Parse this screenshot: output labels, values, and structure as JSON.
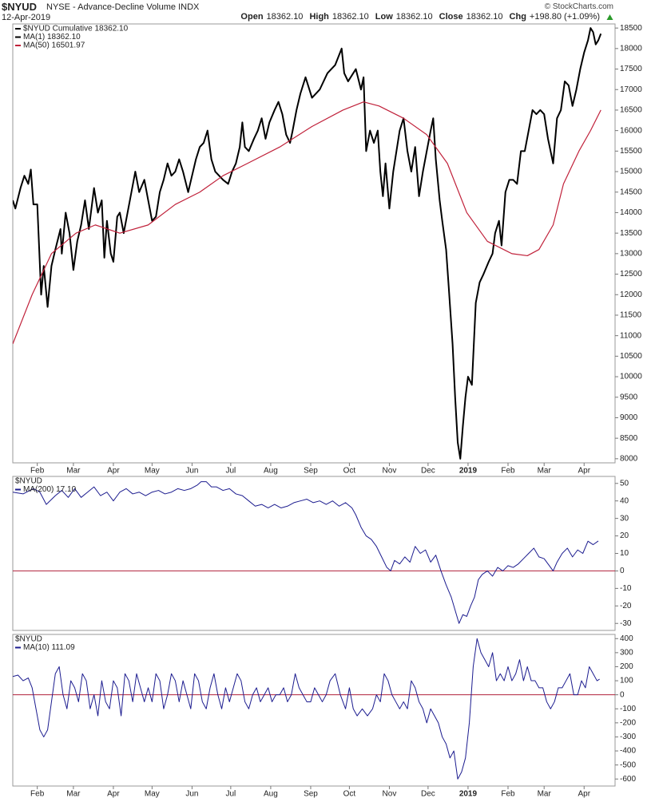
{
  "header": {
    "symbol": "$NYUD",
    "description": "NYSE - Advance-Decline Volume INDX",
    "date": "12-Apr-2019",
    "credit": "© StockCharts.com",
    "quote": [
      {
        "label": "Open",
        "value": "18362.10"
      },
      {
        "label": "High",
        "value": "18362.10"
      },
      {
        "label": "Low",
        "value": "18362.10"
      },
      {
        "label": "Close",
        "value": "18362.10"
      },
      {
        "label": "Chg",
        "value": "+198.80 (+1.09%)"
      }
    ]
  },
  "chart_data": [
    {
      "type": "line",
      "subtitle": "$NYUD Cumulative 18362.10",
      "subtitle_color": "#000000",
      "xlim": [
        12,
        479
      ],
      "ylim": [
        7900,
        18600
      ],
      "yticks": [
        8000,
        8500,
        9000,
        9500,
        10000,
        10500,
        11000,
        11500,
        12000,
        12500,
        13000,
        13500,
        14000,
        14500,
        15000,
        15500,
        16000,
        16500,
        17000,
        17500,
        18000,
        18500
      ],
      "xticks": [
        {
          "value": 31,
          "label": "Feb"
        },
        {
          "value": 59,
          "label": "Mar"
        },
        {
          "value": 90,
          "label": "Apr"
        },
        {
          "value": 120,
          "label": "May"
        },
        {
          "value": 151,
          "label": "Jun"
        },
        {
          "value": 181,
          "label": "Jul"
        },
        {
          "value": 212,
          "label": "Aug"
        },
        {
          "value": 243,
          "label": "Sep"
        },
        {
          "value": 273,
          "label": "Oct"
        },
        {
          "value": 304,
          "label": "Nov"
        },
        {
          "value": 334,
          "label": "Dec"
        },
        {
          "value": 365,
          "label": "2019"
        },
        {
          "value": 396,
          "label": "Feb"
        },
        {
          "value": 424,
          "label": "Mar"
        },
        {
          "value": 455,
          "label": "Apr"
        }
      ],
      "series": [
        {
          "name": "MA(1) 18362.10",
          "color": "#000000",
          "width": 2,
          "x": [
            12,
            14,
            18,
            21,
            24,
            26,
            28,
            31,
            34,
            36,
            39,
            42,
            45,
            49,
            50,
            53,
            56,
            59,
            62,
            65,
            68,
            71,
            75,
            78,
            81,
            83,
            85,
            88,
            90,
            93,
            95,
            98,
            101,
            104,
            107,
            110,
            114,
            117,
            120,
            123,
            126,
            129,
            132,
            135,
            138,
            141,
            144,
            148,
            151,
            154,
            157,
            160,
            163,
            166,
            169,
            172,
            175,
            179,
            182,
            185,
            188,
            190,
            192,
            195,
            199,
            202,
            205,
            208,
            211,
            215,
            218,
            221,
            224,
            227,
            229,
            232,
            235,
            239,
            244,
            250,
            256,
            262,
            267,
            269,
            272,
            278,
            282,
            284,
            286,
            289,
            292,
            295,
            297,
            299,
            301,
            304,
            307,
            312,
            315,
            318,
            321,
            324,
            327,
            330,
            333,
            336,
            338,
            340,
            343,
            345,
            348,
            350,
            353,
            355,
            357,
            359,
            361,
            363,
            365,
            368,
            371,
            374,
            377,
            381,
            384,
            386,
            389,
            391,
            394,
            397,
            400,
            403,
            406,
            409,
            412,
            415,
            418,
            421,
            424,
            427,
            431,
            434,
            437,
            440,
            443,
            446,
            449,
            452,
            455,
            458,
            460,
            462,
            464,
            466,
            468
          ],
          "values": [
            14300,
            14100,
            14600,
            14900,
            14700,
            15050,
            14200,
            14200,
            12000,
            12700,
            11700,
            12700,
            13100,
            13600,
            13000,
            14000,
            13500,
            12600,
            13300,
            13700,
            14300,
            13600,
            14600,
            14000,
            14300,
            12900,
            13800,
            13000,
            12800,
            13900,
            14000,
            13500,
            14000,
            14500,
            15000,
            14500,
            14800,
            14300,
            13800,
            13900,
            14500,
            14800,
            15200,
            14900,
            15000,
            15300,
            15000,
            14500,
            14900,
            15300,
            15600,
            15700,
            16000,
            15300,
            15000,
            14900,
            14800,
            14700,
            15000,
            15200,
            15600,
            16200,
            15600,
            15500,
            15800,
            16000,
            16300,
            15800,
            16200,
            16500,
            16700,
            16400,
            15900,
            15700,
            16000,
            16500,
            16900,
            17300,
            16800,
            17000,
            17400,
            17600,
            18000,
            17400,
            17200,
            17500,
            17000,
            17300,
            15500,
            16000,
            15700,
            16000,
            15000,
            14400,
            15200,
            14100,
            15000,
            16000,
            16300,
            15500,
            15000,
            15600,
            14400,
            15000,
            15500,
            16000,
            16300,
            15300,
            14300,
            13800,
            13100,
            12200,
            10800,
            9500,
            8400,
            8000,
            8800,
            9500,
            10000,
            9800,
            11800,
            12300,
            12500,
            12800,
            13000,
            13500,
            13800,
            13200,
            14500,
            14800,
            14800,
            14700,
            15500,
            15500,
            16000,
            16500,
            16400,
            16500,
            16400,
            15800,
            15200,
            16300,
            16500,
            17200,
            17100,
            16600,
            17000,
            17500,
            17900,
            18200,
            18500,
            18400,
            18100,
            18200,
            18362.1
          ]
        },
        {
          "name": "MA(50) 16501.97",
          "color": "#c0213a",
          "width": 1.2,
          "x": [
            12,
            27,
            42,
            61,
            76,
            95,
            117,
            138,
            157,
            175,
            194,
            219,
            244,
            268,
            284,
            296,
            315,
            333,
            349,
            364,
            380,
            399,
            411,
            420,
            431,
            439,
            451,
            460,
            468
          ],
          "values": [
            10800,
            12000,
            13000,
            13500,
            13700,
            13500,
            13700,
            14200,
            14500,
            14900,
            15200,
            15600,
            16100,
            16500,
            16700,
            16600,
            16300,
            15900,
            15200,
            14000,
            13300,
            13000,
            12950,
            13100,
            13700,
            14700,
            15500,
            16000,
            16501.97
          ]
        }
      ]
    },
    {
      "type": "line",
      "subtitle": "$NYUD",
      "zero_line": true,
      "zero_line_color": "#b0203a",
      "xlim": [
        12,
        479
      ],
      "ylim": [
        -34,
        54
      ],
      "yticks": [
        -30,
        -20,
        -10,
        0,
        10,
        20,
        30,
        40,
        50
      ],
      "series": [
        {
          "name": "MA(200) 17.10",
          "color": "#1c1c8f",
          "width": 1,
          "x": [
            12,
            20,
            28,
            33,
            38,
            45,
            50,
            55,
            60,
            65,
            70,
            75,
            80,
            85,
            90,
            95,
            100,
            105,
            110,
            115,
            120,
            125,
            130,
            135,
            140,
            145,
            150,
            155,
            158,
            162,
            166,
            170,
            175,
            180,
            185,
            190,
            195,
            200,
            205,
            210,
            215,
            220,
            225,
            230,
            235,
            240,
            245,
            250,
            255,
            260,
            265,
            270,
            275,
            278,
            282,
            286,
            290,
            294,
            298,
            302,
            305,
            308,
            312,
            316,
            320,
            324,
            328,
            332,
            336,
            340,
            344,
            348,
            352,
            356,
            358,
            361,
            364,
            367,
            370,
            373,
            376,
            380,
            384,
            388,
            392,
            396,
            400,
            404,
            408,
            412,
            416,
            420,
            424,
            428,
            431,
            434,
            438,
            442,
            446,
            450,
            454,
            458,
            462,
            466
          ],
          "values": [
            45,
            44,
            47,
            45,
            38,
            43,
            46,
            42,
            47,
            42,
            45,
            48,
            43,
            45,
            40,
            45,
            47,
            44,
            45,
            43,
            45,
            46,
            44,
            45,
            47,
            46,
            47,
            49,
            51,
            51,
            48,
            48,
            46,
            47,
            44,
            43,
            40,
            37,
            38,
            36,
            38,
            36,
            37,
            39,
            40,
            41,
            39,
            40,
            38,
            40,
            37,
            39,
            36,
            32,
            25,
            20,
            18,
            14,
            8,
            2,
            0,
            6,
            4,
            8,
            5,
            14,
            10,
            12,
            5,
            9,
            0,
            -8,
            -15,
            -25,
            -30,
            -25,
            -26,
            -20,
            -15,
            -5,
            -2,
            0,
            -3,
            2,
            0,
            3,
            2,
            4,
            7,
            10,
            13,
            8,
            7,
            3,
            0,
            5,
            10,
            13,
            8,
            12,
            10,
            17,
            15,
            17.1
          ]
        }
      ]
    },
    {
      "type": "line",
      "subtitle": "$NYUD",
      "zero_line": true,
      "zero_line_color": "#b0203a",
      "xlim": [
        12,
        479
      ],
      "ylim": [
        -650,
        430
      ],
      "yticks": [
        -600,
        -500,
        -400,
        -300,
        -200,
        -100,
        0,
        100,
        200,
        300,
        400
      ],
      "xticks": [
        {
          "value": 31,
          "label": "Feb"
        },
        {
          "value": 59,
          "label": "Mar"
        },
        {
          "value": 90,
          "label": "Apr"
        },
        {
          "value": 120,
          "label": "May"
        },
        {
          "value": 151,
          "label": "Jun"
        },
        {
          "value": 181,
          "label": "Jul"
        },
        {
          "value": 212,
          "label": "Aug"
        },
        {
          "value": 243,
          "label": "Sep"
        },
        {
          "value": 273,
          "label": "Oct"
        },
        {
          "value": 304,
          "label": "Nov"
        },
        {
          "value": 334,
          "label": "Dec"
        },
        {
          "value": 365,
          "label": "2019"
        },
        {
          "value": 396,
          "label": "Feb"
        },
        {
          "value": 424,
          "label": "Mar"
        },
        {
          "value": 455,
          "label": "Apr"
        }
      ],
      "series": [
        {
          "name": "MA(10) 111.09",
          "color": "#1c1c8f",
          "width": 1,
          "x": [
            12,
            16,
            20,
            24,
            27,
            30,
            33,
            36,
            39,
            42,
            45,
            48,
            51,
            54,
            57,
            60,
            63,
            66,
            69,
            72,
            75,
            78,
            81,
            84,
            87,
            90,
            93,
            96,
            99,
            102,
            105,
            108,
            111,
            114,
            117,
            120,
            123,
            126,
            129,
            132,
            135,
            138,
            141,
            144,
            147,
            150,
            153,
            156,
            159,
            162,
            165,
            168,
            171,
            174,
            177,
            180,
            183,
            186,
            189,
            192,
            195,
            198,
            201,
            204,
            207,
            210,
            213,
            216,
            219,
            222,
            225,
            228,
            231,
            234,
            237,
            240,
            243,
            246,
            249,
            252,
            255,
            258,
            262,
            266,
            270,
            273,
            276,
            279,
            283,
            287,
            291,
            294,
            297,
            300,
            303,
            306,
            309,
            312,
            315,
            318,
            321,
            324,
            327,
            330,
            333,
            336,
            339,
            342,
            345,
            348,
            351,
            354,
            357,
            360,
            363,
            366,
            369,
            372,
            375,
            378,
            381,
            384,
            387,
            390,
            393,
            396,
            399,
            402,
            405,
            408,
            411,
            414,
            417,
            420,
            423,
            426,
            429,
            432,
            435,
            438,
            441,
            444,
            447,
            450,
            453,
            456,
            459,
            462,
            465,
            467
          ],
          "values": [
            130,
            140,
            100,
            120,
            50,
            -100,
            -250,
            -300,
            -250,
            -50,
            150,
            200,
            0,
            -100,
            100,
            50,
            -50,
            150,
            100,
            -100,
            0,
            -150,
            100,
            -50,
            -100,
            100,
            50,
            -150,
            150,
            100,
            -50,
            150,
            50,
            -50,
            50,
            -50,
            150,
            100,
            -100,
            0,
            150,
            100,
            -50,
            100,
            0,
            -100,
            150,
            100,
            -50,
            -100,
            50,
            150,
            0,
            -100,
            50,
            -50,
            50,
            150,
            100,
            -50,
            -100,
            0,
            50,
            -50,
            0,
            50,
            -50,
            0,
            0,
            50,
            -50,
            0,
            150,
            50,
            0,
            -50,
            -50,
            50,
            0,
            -50,
            0,
            100,
            150,
            0,
            -100,
            50,
            -100,
            -150,
            -100,
            -150,
            -100,
            0,
            -50,
            150,
            100,
            0,
            -50,
            -100,
            -50,
            -100,
            100,
            50,
            -50,
            -100,
            -200,
            -100,
            -150,
            -200,
            -300,
            -350,
            -450,
            -400,
            -600,
            -550,
            -450,
            -200,
            200,
            400,
            300,
            250,
            200,
            300,
            100,
            150,
            100,
            200,
            100,
            150,
            250,
            100,
            200,
            100,
            100,
            50,
            50,
            -50,
            -100,
            -50,
            50,
            50,
            100,
            150,
            0,
            0,
            100,
            50,
            200,
            150,
            100,
            111.09
          ]
        }
      ]
    }
  ]
}
